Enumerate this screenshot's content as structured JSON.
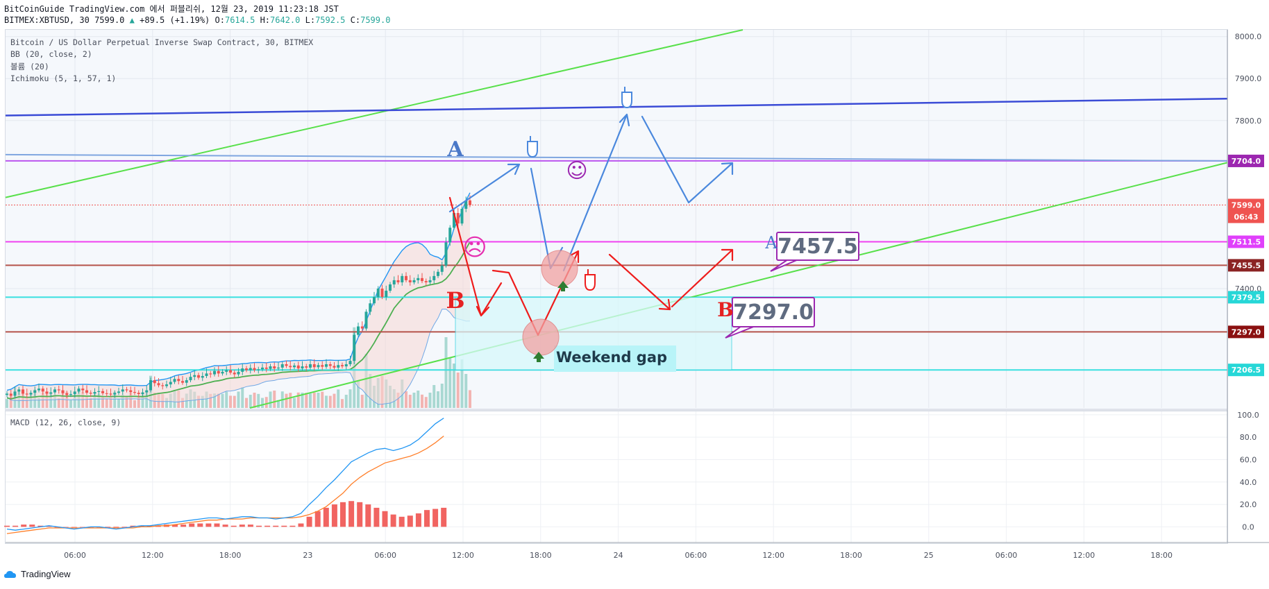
{
  "header": {
    "line1": "BitCoinGuide TradingView.com 에서 퍼블리쉬, 12월 23, 2019 11:23:18 JST",
    "symbol": "BITMEX:XBTUSD, 30",
    "last": "7599.0",
    "change_arrow": "▲",
    "change": "+89.5 (+1.19%)",
    "o_label": "O:",
    "o": "7614.5",
    "h_label": "H:",
    "h": "7642.0",
    "l_label": "L:",
    "l": "7592.5",
    "c_label": "C:",
    "c": "7599.0"
  },
  "legend": {
    "title": "Bitcoin / US Dollar Perpetual Inverse Swap Contract, 30, BITMEX",
    "bb": "BB (20, close, 2)",
    "volume": "볼륨 (20)",
    "ichimoku": "Ichimoku (5, 1, 57, 1)",
    "macd": "MACD (12, 26, close, 9)"
  },
  "annotations": {
    "label_a_left": "A",
    "label_a_right": "A",
    "label_b_left": "B",
    "label_b_right": "B",
    "callout_upper": "7457.5",
    "callout_lower": "7297.0",
    "weekend_gap": "Weekend gap",
    "smile": "☺",
    "frown": "☹"
  },
  "footer": {
    "brand": "TradingView"
  },
  "colors": {
    "bull": "#26a69a",
    "bear": "#ef5350",
    "bb_line": "#2196f3",
    "green_line": "#58e04a",
    "navy_line": "#3a4bd6",
    "purple_line": "#bb55ee",
    "magenta_line": "#f040f0",
    "brown_line": "#b5524a",
    "cyan_line": "#38e0e0",
    "macd": "#2196f3",
    "signal": "#ff7f2a",
    "red_arrow": "#ee1c1c",
    "blue_arrow": "#4a88dd"
  },
  "chart_data": [
    {
      "type": "candlestick",
      "title": "Bitcoin / US Dollar Perpetual Inverse Swap Contract, 30, BITMEX",
      "x_ticks": [
        "06:00",
        "12:00",
        "18:00",
        "23",
        "06:00",
        "12:00",
        "18:00",
        "24",
        "06:00",
        "12:00",
        "18:00",
        "25",
        "06:00",
        "12:00",
        "18:00"
      ],
      "y_ticks": [
        8000.0,
        7900.0,
        7800.0,
        7400.0
      ],
      "ylim": [
        7116,
        8016
      ],
      "closes": [
        7150,
        7145,
        7155,
        7160,
        7150,
        7148,
        7152,
        7158,
        7162,
        7155,
        7150,
        7153,
        7160,
        7158,
        7151,
        7147,
        7149,
        7155,
        7162,
        7158,
        7152,
        7150,
        7154,
        7156,
        7151,
        7150,
        7148,
        7152,
        7155,
        7160,
        7158,
        7154,
        7152,
        7149,
        7153,
        7158,
        7182,
        7175,
        7170,
        7168,
        7172,
        7178,
        7185,
        7180,
        7176,
        7182,
        7190,
        7194,
        7188,
        7192,
        7198,
        7196,
        7204,
        7198,
        7202,
        7206,
        7200,
        7196,
        7202,
        7210,
        7206,
        7211,
        7206,
        7208,
        7212,
        7209,
        7215,
        7210,
        7212,
        7220,
        7216,
        7213,
        7217,
        7210,
        7215,
        7212,
        7220,
        7213,
        7218,
        7214,
        7220,
        7216,
        7212,
        7218,
        7215,
        7220,
        7228,
        7290,
        7310,
        7305,
        7345,
        7365,
        7380,
        7400,
        7380,
        7395,
        7410,
        7420,
        7415,
        7430,
        7420,
        7415,
        7420,
        7425,
        7418,
        7415,
        7420,
        7430,
        7440,
        7455,
        7510,
        7545,
        7580,
        7555,
        7590,
        7610,
        7599
      ],
      "price_labels": [
        {
          "value": "7704.0",
          "color": "#9c27b0"
        },
        {
          "value": "7599.0",
          "color": "#ef5350"
        },
        {
          "value": "06:43",
          "color": "#ef5350"
        },
        {
          "value": "7511.5",
          "color": "#e040fb"
        },
        {
          "value": "7455.5",
          "color": "#8b2323"
        },
        {
          "value": "7379.5",
          "color": "#26d7d7"
        },
        {
          "value": "7297.0",
          "color": "#8b1010"
        },
        {
          "value": "7206.5",
          "color": "#26d7d7"
        }
      ]
    },
    {
      "type": "line",
      "title": "MACD (12, 26, close, 9)",
      "y_ticks": [
        100.0,
        80.0,
        60.0,
        40.0,
        20.0,
        0.0
      ],
      "ylim": [
        -14,
        103
      ],
      "series": [
        {
          "values": [
            -2,
            -3,
            -2,
            -1,
            0,
            1,
            0,
            -1,
            -2,
            -1,
            0,
            0,
            -1,
            -2,
            -1,
            0,
            1,
            1,
            2,
            3,
            4,
            5,
            6,
            7,
            8,
            8,
            7,
            8,
            9,
            9,
            8,
            8,
            7,
            8,
            9,
            12,
            20,
            27,
            35,
            42,
            50,
            58,
            62,
            66,
            69,
            70,
            68,
            70,
            73,
            78,
            85,
            92,
            97
          ]
        },
        {
          "values": [
            -6,
            -5,
            -4,
            -3,
            -2,
            -1,
            -1,
            -1,
            -1,
            -1,
            -1,
            -1,
            -1,
            -1,
            -1,
            -1,
            0,
            0,
            1,
            1,
            2,
            3,
            4,
            5,
            6,
            6,
            7,
            7,
            7,
            8,
            8,
            8,
            8,
            8,
            8,
            9,
            11,
            14,
            18,
            24,
            30,
            38,
            44,
            49,
            53,
            57,
            59,
            61,
            63,
            66,
            70,
            75,
            81
          ]
        },
        {
          "values": [
            1,
            1,
            2,
            2,
            1,
            1,
            0,
            -1,
            -1,
            -1,
            -1,
            -1,
            0,
            0,
            0,
            1,
            1,
            1,
            1,
            2,
            2,
            2,
            3,
            3,
            3,
            3,
            2,
            1,
            2,
            2,
            1,
            1,
            1,
            1,
            1,
            3,
            9,
            14,
            17,
            20,
            22,
            23,
            22,
            20,
            17,
            14,
            11,
            9,
            10,
            12,
            15,
            16,
            17
          ]
        }
      ]
    }
  ]
}
